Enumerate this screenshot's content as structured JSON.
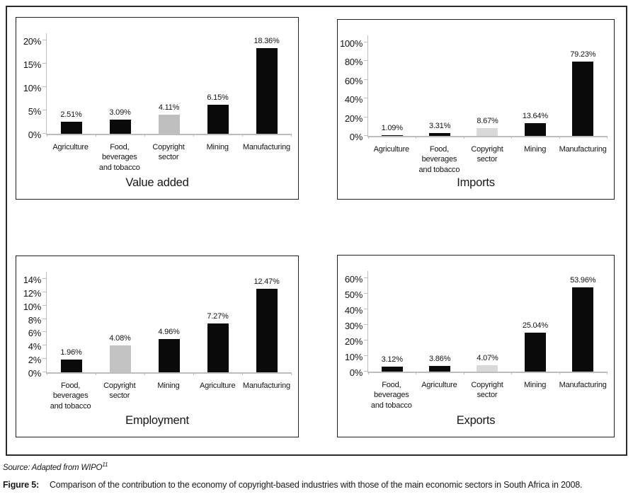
{
  "figure": {
    "source_prefix": "Source:",
    "source_text": " Adapted from WIPO",
    "source_superscript": "11",
    "caption_label": "Figure 5:",
    "caption_text": "Comparison of the contribution to the economy of copyright-based industries with those of the main economic sectors in South Africa in 2008."
  },
  "colors": {
    "bar_default": "#0a0a0a",
    "axis": "#bdbdbd",
    "text": "#141414",
    "panel_border": "#1f1f1f",
    "outer_border": "#2b2b2b"
  },
  "chart_data": [
    {
      "type": "bar",
      "title": "Value added",
      "categories": [
        "Agriculture",
        "Food, beverages\nand tobacco",
        "Copyright sector",
        "Mining",
        "Manufacturing"
      ],
      "values": [
        2.51,
        3.09,
        4.11,
        6.15,
        18.36
      ],
      "labels": [
        "2.51%",
        "3.09%",
        "4.11%",
        "6.15%",
        "18.36%"
      ],
      "highlight_index": 2,
      "highlight_color": "#bfbfbf",
      "ylim": [
        0,
        20
      ],
      "yticks": [
        0,
        5,
        10,
        15,
        20
      ],
      "ylabel": "",
      "xlabel": "",
      "grid": false,
      "legend": false
    },
    {
      "type": "bar",
      "title": "Imports",
      "categories": [
        "Agriculture",
        "Food, beverages\nand tobacco",
        "Copyright sector",
        "Mining",
        "Manufacturing"
      ],
      "values": [
        1.09,
        3.31,
        8.67,
        13.64,
        79.23
      ],
      "labels": [
        "1.09%",
        "3.31%",
        "8.67%",
        "13.64%",
        "79.23%"
      ],
      "highlight_index": 2,
      "highlight_color": "#d9d9d9",
      "ylim": [
        0,
        100
      ],
      "yticks": [
        0,
        20,
        40,
        60,
        80,
        100
      ],
      "ylabel": "",
      "xlabel": "",
      "grid": false,
      "legend": false
    },
    {
      "type": "bar",
      "title": "Employment",
      "categories": [
        "Food, beverages\nand tobacco",
        "Copyright sector",
        "Mining",
        "Agriculture",
        "Manufacturing"
      ],
      "values": [
        1.96,
        4.08,
        4.96,
        7.27,
        12.47
      ],
      "labels": [
        "1.96%",
        "4.08%",
        "4.96%",
        "7.27%",
        "12.47%"
      ],
      "highlight_index": 1,
      "highlight_color": "#c3c3c3",
      "ylim": [
        0,
        14
      ],
      "yticks": [
        0,
        2,
        4,
        6,
        8,
        10,
        12,
        14
      ],
      "ylabel": "",
      "xlabel": "",
      "grid": false,
      "legend": false
    },
    {
      "type": "bar",
      "title": "Exports",
      "categories": [
        "Food, beverages\nand tobacco",
        "Agriculture",
        "Copyright sector",
        "Mining",
        "Manufacturing"
      ],
      "values": [
        3.12,
        3.86,
        4.07,
        25.04,
        53.96
      ],
      "labels": [
        "3.12%",
        "3.86%",
        "4.07%",
        "25.04%",
        "53.96%"
      ],
      "highlight_index": 2,
      "highlight_color": "#d9d9d9",
      "ylim": [
        0,
        60
      ],
      "yticks": [
        0,
        10,
        20,
        30,
        40,
        50,
        60
      ],
      "ylabel": "",
      "xlabel": "",
      "grid": false,
      "legend": false
    }
  ]
}
